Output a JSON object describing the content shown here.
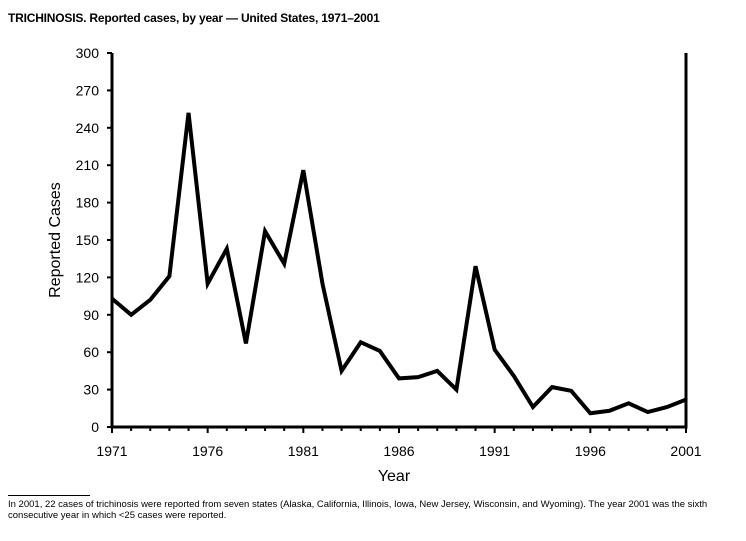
{
  "title": "TRICHINOSIS. Reported cases, by year — United States, 1971–2001",
  "footnote": "In 2001, 22 cases of trichinosis were reported from seven states (Alaska, California, Illinois, Iowa, New Jersey, Wisconsin, and Wyoming). The year 2001 was the sixth consecutive year in which <25 cases were reported.",
  "chart_data": {
    "type": "line",
    "title": "TRICHINOSIS. Reported cases, by year — United States, 1971–2001",
    "xlabel": "Year",
    "ylabel": "Reported Cases",
    "xlim": [
      1971,
      2001
    ],
    "ylim": [
      0,
      300
    ],
    "xticks": [
      1971,
      1976,
      1981,
      1986,
      1991,
      1996,
      2001
    ],
    "yticks": [
      0,
      30,
      60,
      90,
      120,
      150,
      180,
      210,
      240,
      270,
      300
    ],
    "grid": false,
    "color": "#000000",
    "x": [
      1971,
      1972,
      1973,
      1974,
      1975,
      1976,
      1977,
      1978,
      1979,
      1980,
      1981,
      1982,
      1983,
      1984,
      1985,
      1986,
      1987,
      1988,
      1989,
      1990,
      1991,
      1992,
      1993,
      1994,
      1995,
      1996,
      1997,
      1998,
      1999,
      2000,
      2001
    ],
    "values": [
      103,
      90,
      102,
      121,
      252,
      115,
      143,
      67,
      157,
      131,
      206,
      115,
      45,
      68,
      61,
      39,
      40,
      45,
      30,
      129,
      62,
      41,
      16,
      32,
      29,
      11,
      13,
      19,
      12,
      16,
      22
    ]
  }
}
